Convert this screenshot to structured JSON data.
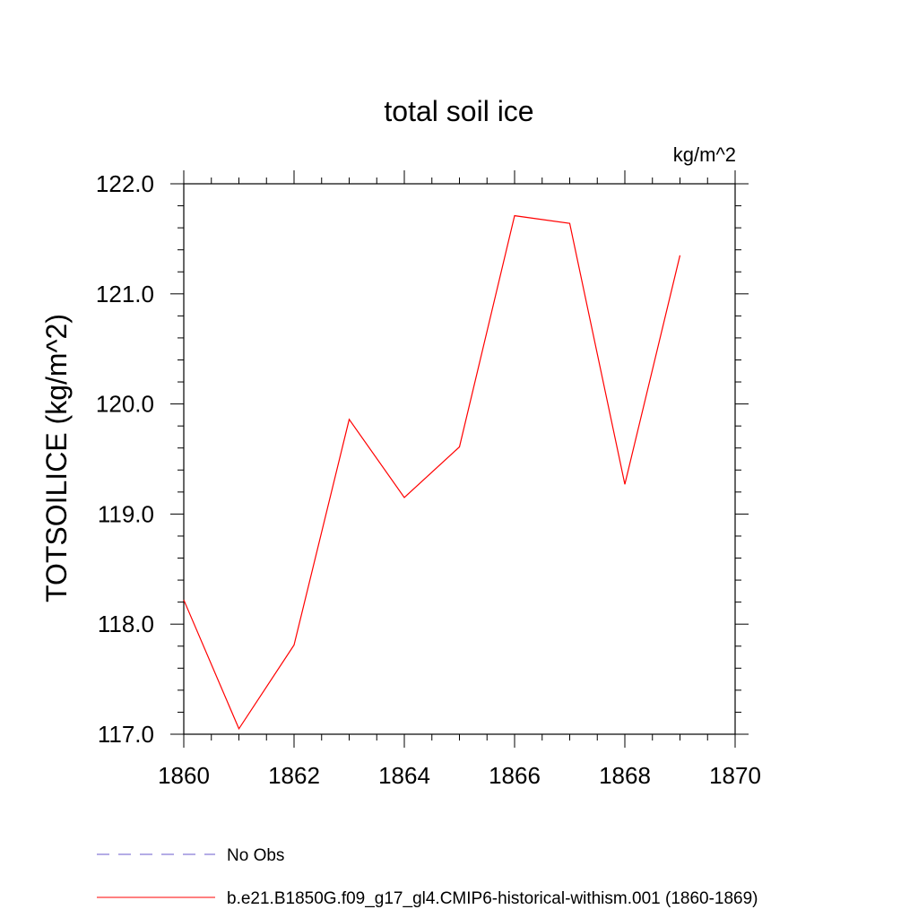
{
  "chart_data": {
    "type": "line",
    "title": "total soil ice",
    "units_label": "kg/m^2",
    "ylabel": "TOTSOILICE  (kg/m^2)",
    "xlabel": "",
    "xlim": [
      1860,
      1870
    ],
    "ylim": [
      117.0,
      122.0
    ],
    "x_ticks": [
      1860,
      1862,
      1864,
      1866,
      1868,
      1870
    ],
    "x_tick_labels": [
      "1860",
      "1862",
      "1864",
      "1866",
      "1868",
      "1870"
    ],
    "y_ticks": [
      117.0,
      118.0,
      119.0,
      120.0,
      121.0,
      122.0
    ],
    "y_tick_labels": [
      "117.0",
      "118.0",
      "119.0",
      "120.0",
      "121.0",
      "122.0"
    ],
    "grid": false,
    "legend_placement": "bottom-left",
    "series": [
      {
        "name": "No Obs",
        "color": "#6a5acd",
        "dashed": true,
        "x": [],
        "values": []
      },
      {
        "name": "b.e21.B1850G.f09_g17_gl4.CMIP6-historical-withism.001 (1860-1869)",
        "color": "#ff0000",
        "dashed": false,
        "x": [
          1860,
          1861,
          1862,
          1863,
          1864,
          1865,
          1866,
          1867,
          1868,
          1869
        ],
        "values": [
          118.22,
          117.05,
          117.81,
          119.86,
          119.15,
          119.61,
          121.71,
          121.64,
          119.27,
          121.35
        ]
      }
    ]
  }
}
